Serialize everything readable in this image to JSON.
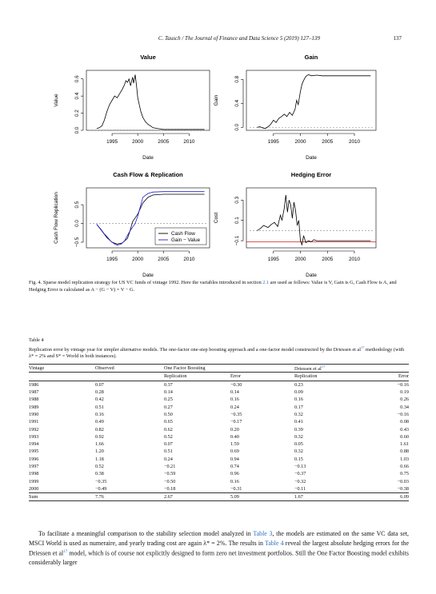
{
  "header": {
    "running_title": "C. Tausch / The Journal of Finance and Data Science 5 (2019) 127–139",
    "page_number": "137"
  },
  "figure": {
    "caption_label": "Fig. 4.",
    "caption_p1": "Sparse model replication strategy for US VC funds of vintage 1992. Here the variables introduced in section ",
    "caption_link": "2.1",
    "caption_p2": " are used as follows: Value is V, Gain is G, Cash Flow is A, and Hedging Error is calculated as A − (G − V) = V − G."
  },
  "chart_data": [
    {
      "type": "line",
      "title": "Value",
      "xlabel": "Date",
      "ylabel": "Value",
      "xlim": [
        1990,
        2014
      ],
      "ylim": [
        0,
        0.7
      ],
      "xticks": [
        "1995",
        "2000",
        "2005",
        "2010"
      ],
      "yticks": [
        "0.0",
        "0.2",
        "0.4",
        "0.6"
      ],
      "baseline": 0,
      "series": [
        {
          "color": "#000000",
          "x": [
            1992.0,
            1992.5,
            1993.0,
            1993.5,
            1994.0,
            1994.5,
            1995.0,
            1995.5,
            1996.0,
            1996.5,
            1997.0,
            1997.4,
            1997.7,
            1998.0,
            1998.3,
            1998.6,
            1999.0,
            1999.2,
            1999.5,
            1999.8,
            2000.0,
            2000.3,
            2000.6,
            2001.0,
            2001.5,
            2002.0,
            2002.5,
            2003.0,
            2004.0,
            2005.0,
            2006.0,
            2008.0,
            2010.0,
            2013.0
          ],
          "y": [
            0.02,
            0.03,
            0.05,
            0.12,
            0.22,
            0.3,
            0.35,
            0.4,
            0.38,
            0.43,
            0.48,
            0.53,
            0.58,
            0.56,
            0.6,
            0.52,
            0.62,
            0.55,
            0.65,
            0.5,
            0.38,
            0.3,
            0.22,
            0.15,
            0.1,
            0.07,
            0.05,
            0.03,
            0.02,
            0.01,
            0.01,
            0.01,
            0.01,
            0.01
          ]
        }
      ]
    },
    {
      "type": "line",
      "title": "Gain",
      "xlabel": "Date",
      "ylabel": "Gain",
      "xlim": [
        1990,
        2014
      ],
      "ylim": [
        -0.05,
        0.95
      ],
      "xticks": [
        "1995",
        "2000",
        "2005",
        "2010"
      ],
      "yticks": [
        "0.0",
        "0.4",
        "0.8"
      ],
      "baseline": 0,
      "series": [
        {
          "color": "#000000",
          "x": [
            1992.0,
            1992.5,
            1993.0,
            1993.5,
            1994.0,
            1994.5,
            1995.0,
            1995.5,
            1996.0,
            1996.5,
            1997.0,
            1997.5,
            1998.0,
            1998.5,
            1999.0,
            1999.3,
            1999.6,
            2000.0,
            2000.3,
            2000.6,
            2001.0,
            2001.5,
            2002.0,
            2003.0,
            2004.0,
            2006.0,
            2010.0,
            2013.0
          ],
          "y": [
            0.0,
            0.01,
            -0.01,
            -0.02,
            0.01,
            0.05,
            0.12,
            0.08,
            0.15,
            0.18,
            0.22,
            0.18,
            0.25,
            0.2,
            0.3,
            0.45,
            0.38,
            0.6,
            0.72,
            0.78,
            0.85,
            0.88,
            0.86,
            0.87,
            0.86,
            0.86,
            0.86,
            0.86
          ]
        }
      ]
    },
    {
      "type": "line",
      "title": "Cash Flow & Replication",
      "xlabel": "Date",
      "ylabel": "Cash Flow Replication",
      "xlim": [
        1990,
        2014
      ],
      "ylim": [
        -0.65,
        0.95
      ],
      "xticks": [
        "1995",
        "2000",
        "2005",
        "2010"
      ],
      "yticks": [
        "−0.5",
        "0.0",
        "0.5"
      ],
      "baseline": 0,
      "legend": "bottom-right",
      "series": [
        {
          "name": "Cash Flow",
          "color": "#000000",
          "x": [
            1992.0,
            1993.0,
            1994.0,
            1995.0,
            1996.0,
            1997.0,
            1998.0,
            1998.5,
            1999.0,
            2000.0,
            2001.0,
            2002.0,
            2003.0,
            2005.0,
            2008.0,
            2013.0
          ],
          "y": [
            -0.02,
            -0.2,
            -0.38,
            -0.5,
            -0.55,
            -0.52,
            -0.4,
            -0.2,
            0.05,
            0.25,
            0.55,
            0.7,
            0.76,
            0.78,
            0.78,
            0.78
          ]
        },
        {
          "name": "Gain − Value",
          "color": "#1f1fd1",
          "x": [
            1992.0,
            1992.8,
            1993.5,
            1994.0,
            1994.8,
            1995.5,
            1996.0,
            1996.8,
            1997.5,
            1998.0,
            1998.5,
            1999.0,
            1999.5,
            2000.0,
            2000.5,
            2001.0,
            2002.0,
            2003.0,
            2005.0,
            2008.0,
            2013.0
          ],
          "y": [
            -0.02,
            -0.15,
            -0.28,
            -0.35,
            -0.48,
            -0.55,
            -0.58,
            -0.55,
            -0.45,
            -0.32,
            -0.2,
            -0.1,
            0.0,
            0.2,
            0.45,
            0.7,
            0.8,
            0.84,
            0.85,
            0.85,
            0.85
          ]
        }
      ]
    },
    {
      "type": "line",
      "title": "Hedging Error",
      "xlabel": "Date",
      "ylabel": "Cost",
      "xlim": [
        1990,
        2014
      ],
      "ylim": [
        -0.17,
        0.42
      ],
      "xticks": [
        "1995",
        "2000",
        "2005",
        "2010"
      ],
      "yticks": [
        "−0.1",
        "0.1",
        "0.3"
      ],
      "baseline": 0,
      "hline": -0.11,
      "hline_color": "#d11f1f",
      "series": [
        {
          "color": "#000000",
          "x": [
            1992.0,
            1992.6,
            1993.2,
            1994.0,
            1994.6,
            1995.2,
            1995.8,
            1996.3,
            1996.6,
            1997.0,
            1997.3,
            1997.6,
            1997.9,
            1998.2,
            1998.5,
            1998.8,
            1999.1,
            1999.4,
            1999.7,
            2000.0,
            2000.3,
            2000.6,
            2001.0,
            2001.5,
            2002.0,
            2002.5,
            2003.0,
            2004.0,
            2005.0,
            2008.0,
            2013.0
          ],
          "y": [
            0.0,
            0.02,
            0.05,
            0.03,
            0.06,
            0.08,
            0.04,
            0.15,
            0.1,
            0.22,
            0.35,
            0.18,
            0.3,
            0.25,
            0.12,
            0.28,
            0.2,
            0.05,
            0.1,
            -0.1,
            -0.14,
            -0.05,
            -0.12,
            -0.1,
            -0.11,
            -0.09,
            -0.1,
            -0.1,
            -0.1,
            -0.1,
            -0.1
          ]
        }
      ]
    }
  ],
  "table": {
    "title": "Table 4",
    "caption_a": "Replication error by vintage year for simpler alternative models. The one-factor one-step boosting approach and a one-factor model constructed by the Driessen et al",
    "caption_ref": "17",
    "caption_b": " methodology (with λ* = 2% and S* = World in both instances).",
    "col_vintage": "Vintage",
    "col_observed": "Observed",
    "group1": "One Factor Boosting",
    "group2": "Driessen et al",
    "group2_ref": "17",
    "sub_replication": "Replication",
    "sub_error": "Error",
    "rows": [
      [
        "1986",
        "0.07",
        "0.37",
        "−0.30",
        "0.23",
        "−0.16"
      ],
      [
        "1987",
        "0.28",
        "0.14",
        "0.14",
        "0.09",
        "0.19"
      ],
      [
        "1988",
        "0.42",
        "0.25",
        "0.16",
        "0.16",
        "0.26"
      ],
      [
        "1989",
        "0.51",
        "0.27",
        "0.24",
        "0.17",
        "0.34"
      ],
      [
        "1990",
        "0.16",
        "0.50",
        "−0.35",
        "0.32",
        "−0.16"
      ],
      [
        "1991",
        "0.49",
        "0.65",
        "−0.17",
        "0.41",
        "0.08"
      ],
      [
        "1992",
        "0.82",
        "0.62",
        "0.20",
        "0.39",
        "0.43"
      ],
      [
        "1993",
        "0.92",
        "0.52",
        "0.40",
        "0.32",
        "0.60"
      ],
      [
        "1994",
        "1.66",
        "0.07",
        "1.59",
        "0.05",
        "1.61"
      ],
      [
        "1995",
        "1.20",
        "0.51",
        "0.69",
        "0.32",
        "0.88"
      ],
      [
        "1996",
        "1.18",
        "0.24",
        "0.94",
        "0.15",
        "1.03"
      ],
      [
        "1997",
        "0.52",
        "−0.21",
        "0.74",
        "−0.13",
        "0.66"
      ],
      [
        "1998",
        "0.38",
        "−0.59",
        "0.96",
        "−0.37",
        "0.75"
      ],
      [
        "1999",
        "−0.35",
        "−0.50",
        "0.16",
        "−0.32",
        "−0.03"
      ],
      [
        "2000",
        "−0.49",
        "−0.18",
        "−0.31",
        "−0.11",
        "−0.38"
      ]
    ],
    "sum": [
      "Sum",
      "7.76",
      "2.67",
      "5.09",
      "1.67",
      "6.09"
    ]
  },
  "body": {
    "s1": "To facilitate a meaningful comparison to the stability selection model analyzed in ",
    "l1": "Table 3",
    "s2": ", the models are estimated on the same VC data set, MSCI World is used as numeraire, and yearly trading cost are again λ* = 2%. The results in ",
    "l2": "Table 4",
    "s3": " reveal the largest absolute hedging errors for the Driessen et al",
    "l3": "17",
    "s4": " model, which is of course not explicitly designed to form zero net investment portfolios. Still the One Factor Boosting model exhibits considerably larger"
  }
}
